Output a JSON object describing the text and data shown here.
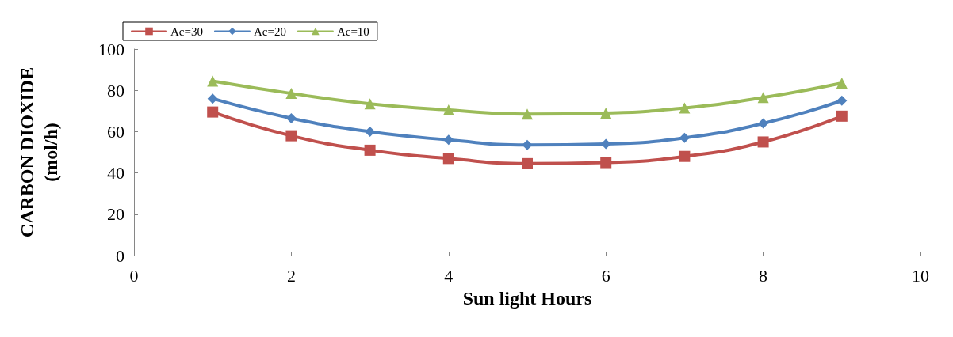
{
  "chart_data": {
    "type": "line",
    "xlabel": "Sun light Hours",
    "ylabel": "CARBON DIOXIDE\n(mol/h)",
    "x": [
      1,
      2,
      3,
      4,
      5,
      6,
      7,
      8,
      9
    ],
    "series": [
      {
        "name": "Ac=30",
        "color": "#c0504d",
        "marker": "square",
        "values": [
          69.5,
          58,
          51,
          47,
          44.5,
          45,
          48,
          55,
          67.5
        ]
      },
      {
        "name": "Ac=20",
        "color": "#4f81bd",
        "marker": "diamond",
        "values": [
          76,
          66.5,
          60,
          56,
          53.5,
          54,
          57,
          64,
          75
        ]
      },
      {
        "name": "Ac=10",
        "color": "#9bbb59",
        "marker": "triangle",
        "values": [
          84.5,
          78.5,
          73.5,
          70.5,
          68.5,
          69,
          71.5,
          76.5,
          83.5
        ]
      }
    ],
    "xlim": [
      0,
      10
    ],
    "xticks": [
      0,
      2,
      4,
      6,
      8,
      10
    ],
    "ylim": [
      0,
      100
    ],
    "yticks": [
      0,
      20,
      40,
      60,
      80,
      100
    ],
    "grid": false,
    "legend": "top left",
    "line_style": "solid"
  }
}
